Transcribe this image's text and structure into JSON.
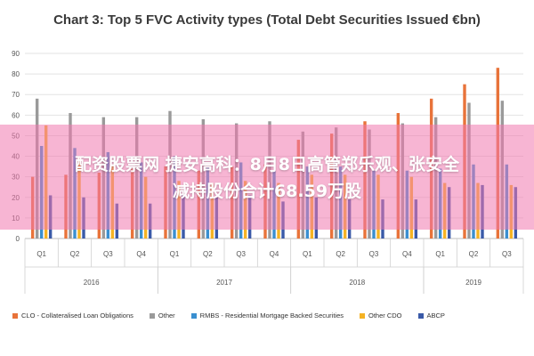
{
  "chart_data": {
    "type": "bar",
    "title": "Chart 3: Top 5 FVC Activity types (Total Debt Securities Issued €bn)",
    "ylim": [
      0,
      90
    ],
    "yticks": [
      "0",
      "10",
      "20",
      "30",
      "40",
      "50",
      "60",
      "70",
      "80",
      "90"
    ],
    "categories": [
      "Q1",
      "Q2",
      "Q3",
      "Q4",
      "Q1",
      "Q2",
      "Q3",
      "Q4",
      "Q1",
      "Q2",
      "Q3",
      "Q4",
      "Q1",
      "Q2",
      "Q3"
    ],
    "years": [
      {
        "label": "2016",
        "start": 0,
        "end": 3
      },
      {
        "label": "2017",
        "start": 4,
        "end": 7
      },
      {
        "label": "2018",
        "start": 8,
        "end": 11
      },
      {
        "label": "2019",
        "start": 12,
        "end": 14
      }
    ],
    "series": [
      {
        "name": "CLO - Collateralised Loan Obligations",
        "color": "#e8733a",
        "values": [
          30,
          31,
          32,
          34,
          35,
          33,
          35,
          36,
          48,
          51,
          57,
          61,
          68,
          75,
          83
        ]
      },
      {
        "name": "Other",
        "color": "#9a9a9a",
        "values": [
          68,
          61,
          59,
          59,
          62,
          58,
          56,
          57,
          52,
          54,
          53,
          56,
          59,
          66,
          67
        ]
      },
      {
        "name": "RMBS - Residential Mortgage Backed Securities",
        "color": "#3a8fd0",
        "values": [
          45,
          44,
          42,
          37,
          40,
          35,
          37,
          33,
          35,
          35,
          33,
          33,
          34,
          36,
          36
        ]
      },
      {
        "name": "Other CDO",
        "color": "#f5b324",
        "values": [
          55,
          40,
          36,
          30,
          28,
          27,
          28,
          27,
          31,
          31,
          31,
          30,
          27,
          27,
          26
        ]
      },
      {
        "name": "ABCP",
        "color": "#3a5aa8",
        "values": [
          21,
          20,
          17,
          17,
          21,
          20,
          21,
          18,
          20,
          19,
          19,
          19,
          25,
          26,
          25
        ]
      }
    ],
    "grid": true,
    "legend_position": "bottom"
  },
  "banner": {
    "line1": "配资股票网 捷安高科：8月8日高管郑乐观、张安全",
    "line2": "减持股份合计68.59万股"
  }
}
